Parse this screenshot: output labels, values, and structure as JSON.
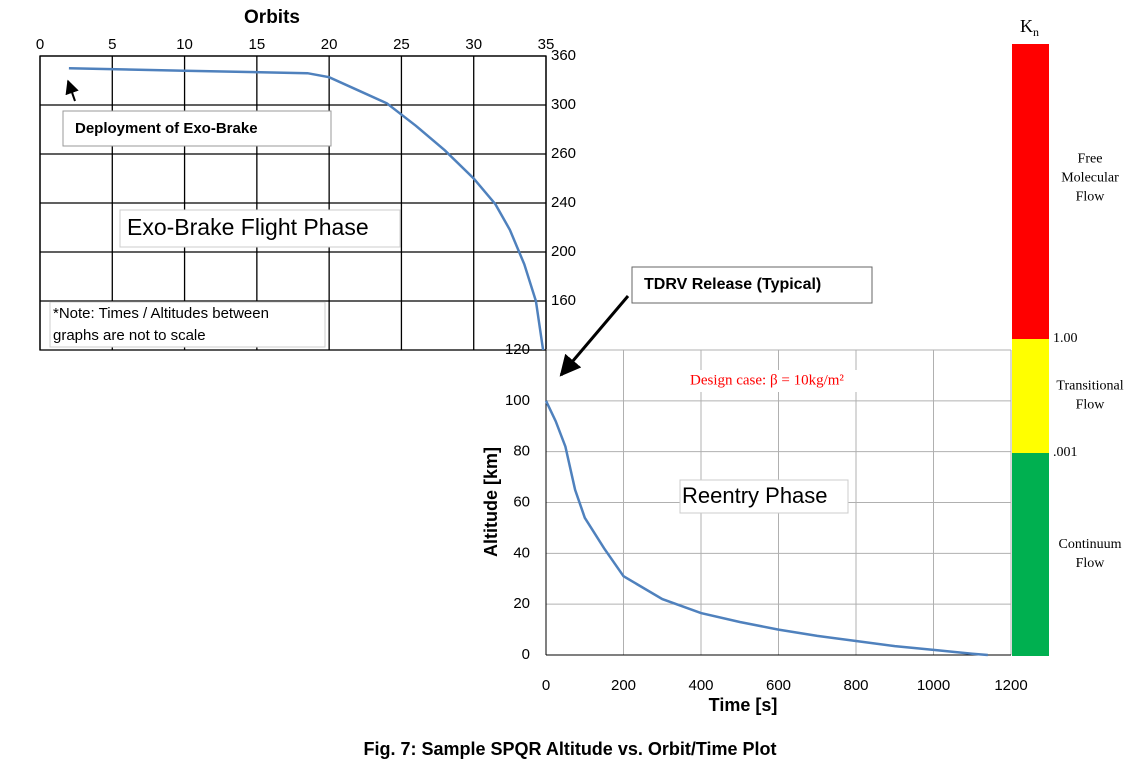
{
  "chart_data": [
    {
      "type": "line",
      "title": "Orbits",
      "color": "#4f81bd",
      "x": [
        2,
        10,
        18.5,
        20,
        22,
        24,
        26,
        28,
        30,
        31.5,
        32.5,
        33.5,
        34.3,
        34.8
      ],
      "values": [
        345,
        342,
        339,
        334,
        318,
        302,
        283,
        263,
        250,
        239,
        218,
        190,
        160,
        120
      ],
      "xlim": [
        0,
        35
      ],
      "xticks": [
        0,
        5,
        10,
        15,
        20,
        25,
        30,
        35
      ],
      "ylim": [
        360,
        120
      ],
      "yticks": [
        360,
        300,
        260,
        240,
        200,
        160
      ],
      "yscale": "tick-spaced",
      "grid": true,
      "grid_color": "#000000"
    },
    {
      "type": "line",
      "x_label": "Time [s]",
      "y_label": "Altitude [km]",
      "color": "#4f81bd",
      "x": [
        0,
        25,
        50,
        75,
        100,
        150,
        200,
        300,
        400,
        500,
        600,
        700,
        800,
        900,
        1000,
        1100,
        1140
      ],
      "values": [
        100,
        92,
        82,
        65,
        54,
        42,
        31,
        22,
        16.5,
        13,
        10,
        7.5,
        5.5,
        3.5,
        2,
        0.5,
        0
      ],
      "xlim": [
        0,
        1200
      ],
      "xticks": [
        0,
        200,
        400,
        600,
        800,
        1000,
        1200
      ],
      "ylim": [
        0,
        120
      ],
      "yticks": [
        0,
        20,
        40,
        60,
        80,
        100,
        120
      ],
      "grid": true,
      "grid_color": "#b0b0b0"
    }
  ],
  "annotations": {
    "deployment": "Deployment of Exo-Brake",
    "flight_phase": "Exo-Brake Flight Phase",
    "note": [
      "*Note: Times / Altitudes between",
      "graphs are not to scale"
    ],
    "release": "TDRV Release (Typical)",
    "design_case": "Design case: β = 10kg/m²",
    "reentry": "Reentry Phase"
  },
  "kn_scale": {
    "title": "K",
    "subscript": "n",
    "boundaries": [
      "1.00",
      ".001"
    ],
    "bands": [
      {
        "label": [
          "Free",
          "Molecular",
          "Flow"
        ],
        "color": "#ff0000"
      },
      {
        "label": [
          "Transitional",
          "Flow"
        ],
        "color": "#ffff00"
      },
      {
        "label": [
          "Continuum",
          "Flow"
        ],
        "color": "#00b050"
      }
    ]
  },
  "caption": "Fig. 7: Sample SPQR Altitude vs. Orbit/Time Plot"
}
